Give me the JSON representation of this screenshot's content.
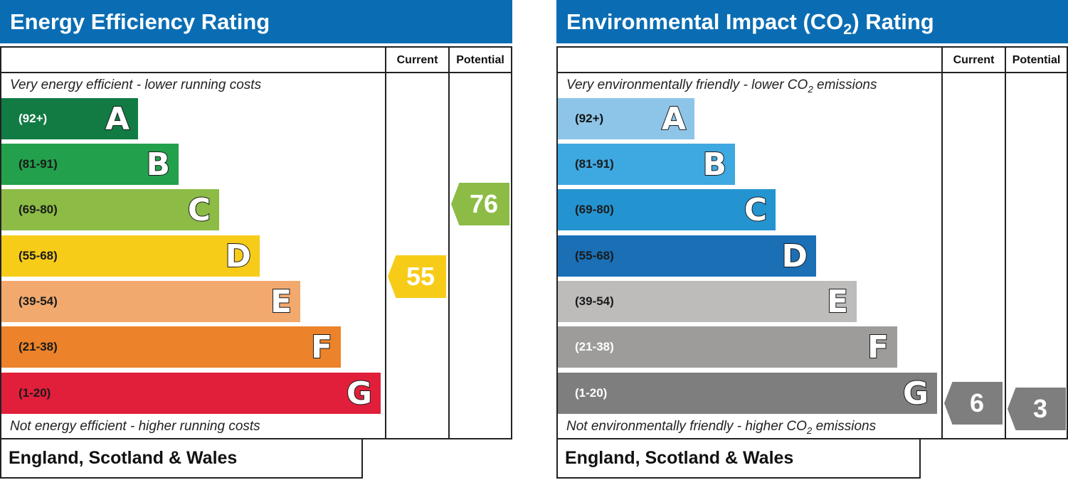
{
  "energy": {
    "title": "Energy Efficiency Rating",
    "col_current": "Current",
    "col_potential": "Potential",
    "top_caption": "Very energy efficient - lower running costs",
    "bottom_caption": "Not energy efficient - higher running costs",
    "footer": "England, Scotland & Wales",
    "bands": [
      {
        "range": "(92+)",
        "letter": "A",
        "color": "#117b43",
        "text_color": "#ffffff"
      },
      {
        "range": "(81-91)",
        "letter": "B",
        "color": "#23a04b",
        "text_color": "#1a1a1a"
      },
      {
        "range": "(69-80)",
        "letter": "C",
        "color": "#8cbc45",
        "text_color": "#1a1a1a"
      },
      {
        "range": "(55-68)",
        "letter": "D",
        "color": "#f7cc18",
        "text_color": "#1a1a1a"
      },
      {
        "range": "(39-54)",
        "letter": "E",
        "color": "#f2a96e",
        "text_color": "#1a1a1a"
      },
      {
        "range": "(21-38)",
        "letter": "F",
        "color": "#ec8229",
        "text_color": "#1a1a1a"
      },
      {
        "range": "(1-20)",
        "letter": "G",
        "color": "#e11f3b",
        "text_color": "#1a1a1a"
      }
    ],
    "current": {
      "value": "55",
      "color": "#f7cc18"
    },
    "potential": {
      "value": "76",
      "color": "#8cbc45"
    }
  },
  "environment": {
    "title_prefix": "Environmental Impact (CO",
    "title_sub": "2",
    "title_suffix": ") Rating",
    "col_current": "Current",
    "col_potential": "Potential",
    "top_caption_prefix": "Very environmentally friendly - lower CO",
    "top_caption_sub": "2",
    "top_caption_suffix": " emissions",
    "bottom_caption_prefix": "Not environmentally friendly - higher CO",
    "bottom_caption_sub": "2",
    "bottom_caption_suffix": " emissions",
    "footer": "England, Scotland & Wales",
    "bands": [
      {
        "range": "(92+)",
        "letter": "A",
        "color": "#8dc5e8",
        "text_color": "#111111"
      },
      {
        "range": "(81-91)",
        "letter": "B",
        "color": "#3ea8e0",
        "text_color": "#1a1a1a"
      },
      {
        "range": "(69-80)",
        "letter": "C",
        "color": "#2494d1",
        "text_color": "#1a1a1a"
      },
      {
        "range": "(55-68)",
        "letter": "D",
        "color": "#1a6fb5",
        "text_color": "#1a1a1a"
      },
      {
        "range": "(39-54)",
        "letter": "E",
        "color": "#bdbcbb",
        "text_color": "#1a1a1a"
      },
      {
        "range": "(21-38)",
        "letter": "F",
        "color": "#9d9c9b",
        "text_color": "#ffffff"
      },
      {
        "range": "(1-20)",
        "letter": "G",
        "color": "#7e7e7e",
        "text_color": "#ffffff"
      }
    ],
    "current": {
      "value": "6",
      "color": "#7e7e7e"
    },
    "potential": {
      "value": "3",
      "color": "#7e7e7e"
    }
  }
}
